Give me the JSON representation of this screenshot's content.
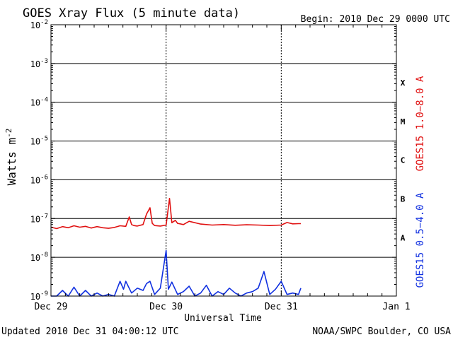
{
  "chart_data": {
    "type": "line",
    "title": "GOES Xray Flux (5 minute data)",
    "begin_label": "Begin:  2010 Dec 29 0000 UTC",
    "ylabel": "Watts m",
    "ylabel_sup": "-2",
    "xlabel": "Universal Time",
    "yscale": "log",
    "ylim": [
      1e-09,
      0.01
    ],
    "y_ticks": [
      {
        "base": "10",
        "exp": "-9",
        "value": 1e-09
      },
      {
        "base": "10",
        "exp": "-8",
        "value": 1e-08
      },
      {
        "base": "10",
        "exp": "-7",
        "value": 1e-07
      },
      {
        "base": "10",
        "exp": "-6",
        "value": 1e-06
      },
      {
        "base": "10",
        "exp": "-5",
        "value": 1e-05
      },
      {
        "base": "10",
        "exp": "-4",
        "value": 0.0001
      },
      {
        "base": "10",
        "exp": "-3",
        "value": 0.001
      },
      {
        "base": "10",
        "exp": "-2",
        "value": 0.01
      }
    ],
    "x_ticks": [
      {
        "label": "Dec 29",
        "day": 0
      },
      {
        "label": "Dec 30",
        "day": 1
      },
      {
        "label": "Dec 31",
        "day": 2
      },
      {
        "label": "Jan 1",
        "day": 3
      }
    ],
    "xlim_days": [
      0,
      3
    ],
    "flare_classes": [
      {
        "label": "X",
        "value": 0.00032
      },
      {
        "label": "M",
        "value": 3.2e-05
      },
      {
        "label": "C",
        "value": 3.2e-06
      },
      {
        "label": "B",
        "value": 3.2e-07
      },
      {
        "label": "A",
        "value": 3.2e-08
      }
    ],
    "grid": true,
    "series": [
      {
        "name": "GOES15 1.0−8.0 A",
        "color": "#e01010",
        "x": [
          0.0,
          0.05,
          0.1,
          0.15,
          0.2,
          0.25,
          0.3,
          0.35,
          0.4,
          0.45,
          0.5,
          0.55,
          0.6,
          0.65,
          0.68,
          0.7,
          0.72,
          0.75,
          0.8,
          0.83,
          0.86,
          0.88,
          0.9,
          0.95,
          1.0,
          1.03,
          1.05,
          1.08,
          1.1,
          1.15,
          1.2,
          1.3,
          1.4,
          1.5,
          1.6,
          1.7,
          1.8,
          1.9,
          2.0,
          2.05,
          2.1,
          2.15,
          2.17
        ],
        "y": [
          6e-08,
          5.5e-08,
          6.2e-08,
          5.8e-08,
          6.5e-08,
          6e-08,
          6.3e-08,
          5.7e-08,
          6.2e-08,
          5.8e-08,
          5.6e-08,
          5.9e-08,
          6.5e-08,
          6.3e-08,
          1.1e-07,
          7e-08,
          6.6e-08,
          6.4e-08,
          7e-08,
          1.3e-07,
          1.9e-07,
          7.5e-08,
          6.6e-08,
          6.4e-08,
          6.8e-08,
          3.3e-07,
          7.8e-08,
          9e-08,
          7.5e-08,
          7e-08,
          8.5e-08,
          7.2e-08,
          6.8e-08,
          7e-08,
          6.7e-08,
          6.9e-08,
          6.8e-08,
          6.6e-08,
          6.8e-08,
          7.9e-08,
          7.3e-08,
          7.4e-08,
          7.4e-08
        ]
      },
      {
        "name": "GOES15 0.5−4.0 A",
        "color": "#1030e0",
        "x": [
          0.0,
          0.05,
          0.1,
          0.15,
          0.2,
          0.25,
          0.3,
          0.35,
          0.4,
          0.45,
          0.5,
          0.55,
          0.6,
          0.63,
          0.65,
          0.7,
          0.75,
          0.8,
          0.83,
          0.86,
          0.9,
          0.95,
          1.0,
          1.02,
          1.05,
          1.1,
          1.15,
          1.2,
          1.25,
          1.3,
          1.35,
          1.4,
          1.45,
          1.5,
          1.55,
          1.6,
          1.65,
          1.7,
          1.75,
          1.8,
          1.85,
          1.9,
          1.95,
          2.0,
          2.05,
          2.1,
          2.15,
          2.17
        ],
        "y": [
          1e-09,
          1e-09,
          1.4e-09,
          1e-09,
          1.7e-09,
          1e-09,
          1.4e-09,
          1e-09,
          1.2e-09,
          1e-09,
          1.1e-09,
          1e-09,
          2.4e-09,
          1.5e-09,
          2.4e-09,
          1.2e-09,
          1.6e-09,
          1.4e-09,
          2.1e-09,
          2.4e-09,
          1.1e-09,
          1.6e-09,
          1.5e-08,
          1.5e-09,
          2.3e-09,
          1.1e-09,
          1.3e-09,
          1.8e-09,
          1e-09,
          1.2e-09,
          1.9e-09,
          1e-09,
          1.3e-09,
          1.1e-09,
          1.6e-09,
          1.2e-09,
          1e-09,
          1.2e-09,
          1.3e-09,
          1.6e-09,
          4.3e-09,
          1.1e-09,
          1.5e-09,
          2.4e-09,
          1.1e-09,
          1.2e-09,
          1.1e-09,
          1.6e-09
        ]
      }
    ]
  },
  "footer": {
    "updated": "Updated 2010 Dec 31 04:00:12 UTC",
    "credit": "NOAA/SWPC Boulder, CO USA"
  }
}
